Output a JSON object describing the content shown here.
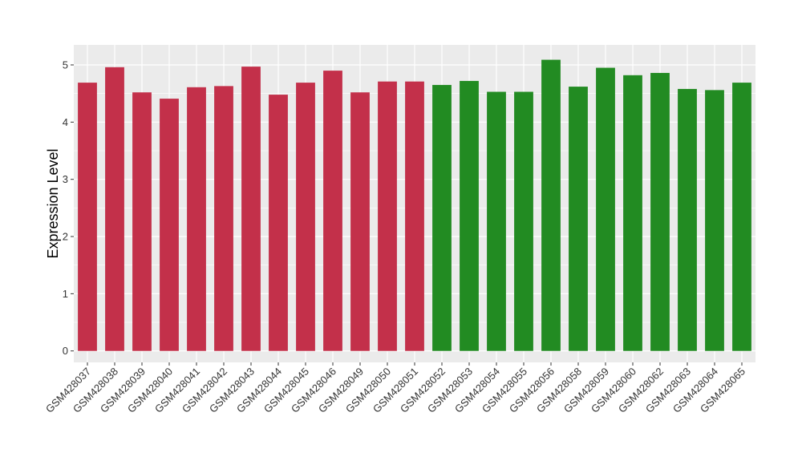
{
  "chart_data": {
    "type": "bar",
    "title": "",
    "xlabel": "",
    "ylabel": "Expression Level",
    "ylim": [
      -0.2,
      5.35
    ],
    "yticks": [
      0,
      1,
      2,
      3,
      4,
      5
    ],
    "grid": true,
    "legend": "none",
    "categories": [
      "GSM428037",
      "GSM428038",
      "GSM428039",
      "GSM428040",
      "GSM428041",
      "GSM428042",
      "GSM428043",
      "GSM428044",
      "GSM428045",
      "GSM428046",
      "GSM428049",
      "GSM428050",
      "GSM428051",
      "GSM428052",
      "GSM428053",
      "GSM428054",
      "GSM428055",
      "GSM428056",
      "GSM428058",
      "GSM428059",
      "GSM428060",
      "GSM428062",
      "GSM428063",
      "GSM428064",
      "GSM428065"
    ],
    "values": [
      4.69,
      4.96,
      4.52,
      4.41,
      4.61,
      4.63,
      4.97,
      4.48,
      4.69,
      4.9,
      4.52,
      4.71,
      4.71,
      4.65,
      4.72,
      4.53,
      4.53,
      5.09,
      4.62,
      4.95,
      4.82,
      4.86,
      4.58,
      4.56,
      4.69
    ],
    "bar_colors": [
      "#c3304a",
      "#c3304a",
      "#c3304a",
      "#c3304a",
      "#c3304a",
      "#c3304a",
      "#c3304a",
      "#c3304a",
      "#c3304a",
      "#c3304a",
      "#c3304a",
      "#c3304a",
      "#c3304a",
      "#228b22",
      "#228b22",
      "#228b22",
      "#228b22",
      "#228b22",
      "#228b22",
      "#228b22",
      "#228b22",
      "#228b22",
      "#228b22",
      "#228b22",
      "#228b22"
    ],
    "colors": {
      "group_a": "#c3304a",
      "group_b": "#228b22",
      "panel_background": "#ebebeb",
      "grid": "#ffffff"
    }
  }
}
